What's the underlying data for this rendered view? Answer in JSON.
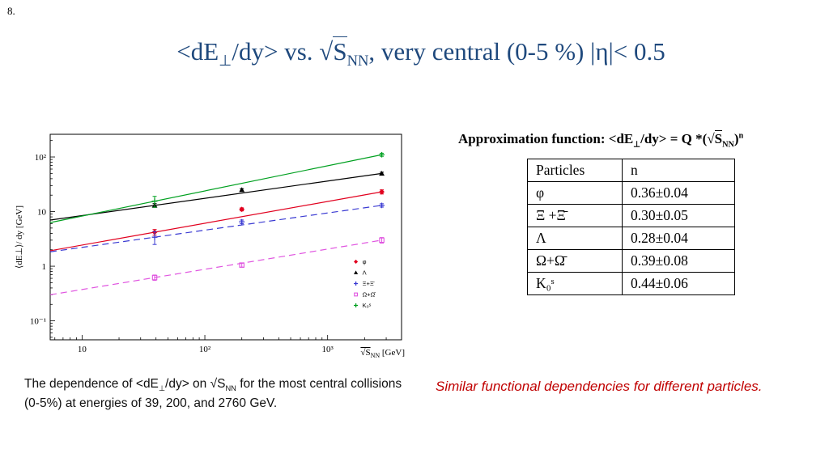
{
  "slide": {
    "page_number": "8.",
    "title": {
      "p1": "<dE",
      "sub1": "⊥",
      "p2": "/dy> vs. ",
      "rad": "√",
      "rad_arg": "S",
      "sub2": "NN",
      "p3": ", very central (0-5 %) |η|< 0.5"
    },
    "approx": {
      "p1": "Approximation function: <dE",
      "sub1": "⊥",
      "p2": "/dy> = Q *(",
      "rad": "√",
      "rad_arg": "S",
      "sub2": "NN",
      "p3": ")",
      "sup1": "n"
    },
    "caption": {
      "p1": "The dependence of <dE",
      "sub1": "⊥",
      "p2": "/dy> on ",
      "rad": "√",
      "rad_arg": "S",
      "sub2": "NN",
      "p3": " for the most central collisions (0-5%) at energies of 39, 200, and 2760 GeV."
    },
    "note": "Similar functional dependencies for different particles.",
    "colors": {
      "title": "#1f497d",
      "note": "#c00000"
    }
  },
  "table": {
    "headers": [
      "Particles",
      "n"
    ],
    "rows": [
      [
        "φ",
        "0.36±0.04"
      ],
      [
        "Ξ +Ξ̄",
        "0.30±0.05"
      ],
      [
        "Λ",
        "0.28±0.04"
      ],
      [
        "Ω+Ω̄",
        "0.39±0.08"
      ],
      [
        "K₀ˢ",
        "0.44±0.06"
      ]
    ]
  },
  "chart_data": {
    "type": "scatter",
    "title": "",
    "x": [
      39,
      200,
      2760
    ],
    "series": [
      {
        "name": "φ",
        "color": "#e1001e",
        "marker": "diamond",
        "line": "solid",
        "values": [
          4.2,
          11,
          23
        ],
        "yerr": [
          0.5,
          0.7,
          2.0
        ]
      },
      {
        "name": "Λ",
        "color": "#000000",
        "marker": "triangle",
        "line": "solid",
        "values": [
          13,
          25,
          50
        ],
        "yerr": [
          1.0,
          1.3,
          2.6
        ]
      },
      {
        "name": "Ξ+Ξ̄",
        "color": "#3a3ad2",
        "marker": "plus",
        "line": "dashed",
        "values": [
          3.4,
          6.5,
          13
        ],
        "yerr": [
          0.9,
          0.5,
          0.9
        ]
      },
      {
        "name": "Ω+Ω̄",
        "color": "#e055e0",
        "marker": "square-open",
        "line": "dashed",
        "values": [
          0.62,
          1.05,
          3.0
        ],
        "yerr": [
          0.07,
          0.09,
          0.35
        ]
      },
      {
        "name": "K₀ˢ",
        "color": "#00a020",
        "marker": "plus",
        "line": "solid",
        "values": [
          15.5,
          null,
          110
        ],
        "yerr": [
          3.5,
          null,
          7
        ]
      }
    ],
    "xlim": [
      5.5,
      4000
    ],
    "ylim": [
      0.045,
      260
    ],
    "x_ticks": [
      10,
      100,
      1000
    ],
    "x_ticklabels": [
      "10",
      "10²",
      "10³"
    ],
    "y_ticks": [
      0.1,
      1,
      10,
      100
    ],
    "y_ticklabels": [
      "10⁻¹",
      "1",
      "10",
      "10²"
    ],
    "ylabel": "⟨dE⊥⟩/ dy  [GeV]",
    "xlabel_parts": [
      "√S",
      "NN",
      " [GeV]"
    ],
    "xscale": "log",
    "yscale": "log",
    "grid": false,
    "legend_position": "bottom-right"
  }
}
